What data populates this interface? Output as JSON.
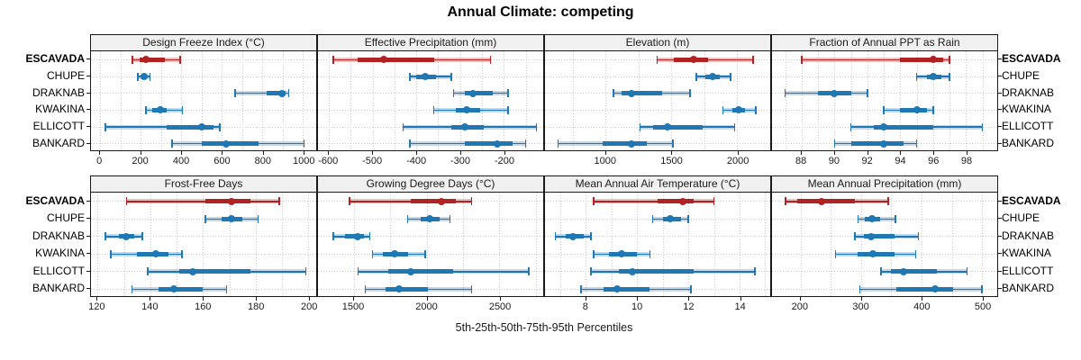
{
  "title": "Annual Climate: competing",
  "caption": "5th-25th-50th-75th-95th Percentiles",
  "highlight_site": "ESCAVADA",
  "colors": {
    "highlight": "#b22222",
    "default": "#1f77b4",
    "grid": "#c9c9c9",
    "header_bg": "#f0f0f0",
    "border": "#1a1a1a"
  },
  "chart_data": {
    "type": "scatter",
    "subtype": "percentile-interval-dotplot",
    "title": "Annual Climate: competing",
    "xlabel": "5th-25th-50th-75th-95th Percentiles",
    "percentiles": [
      5,
      25,
      50,
      75,
      95
    ],
    "legend_position": "none",
    "grid": true,
    "sites": [
      "ESCAVADA",
      "CHUPE",
      "DRAKNAB",
      "KWAKINA",
      "ELLICOTT",
      "BANKARD"
    ],
    "panels": [
      {
        "title": "Design Freeze Index (°C)",
        "row": 0,
        "xlim": [
          -45,
          1065
        ],
        "ticks": [
          0,
          200,
          400,
          600,
          800,
          1000
        ],
        "values": {
          "ESCAVADA": [
            160,
            195,
            225,
            320,
            395
          ],
          "CHUPE": [
            185,
            205,
            215,
            230,
            245
          ],
          "DRAKNAB": [
            665,
            820,
            895,
            915,
            930
          ],
          "KWAKINA": [
            225,
            255,
            295,
            330,
            405
          ],
          "ELLICOTT": [
            25,
            330,
            500,
            560,
            590
          ],
          "BANKARD": [
            355,
            500,
            620,
            780,
            1005
          ]
        }
      },
      {
        "title": "Effective Precipitation (mm)",
        "row": 0,
        "xlim": [
          -625,
          -110
        ],
        "ticks": [
          -600,
          -500,
          -400,
          -300,
          -200
        ],
        "values": {
          "ESCAVADA": [
            -590,
            -535,
            -475,
            -360,
            -230
          ],
          "CHUPE": [
            -415,
            -400,
            -380,
            -355,
            -320
          ],
          "DRAKNAB": [
            -315,
            -290,
            -270,
            -225,
            -190
          ],
          "KWAKINA": [
            -360,
            -310,
            -285,
            -255,
            -190
          ],
          "ELLICOTT": [
            -430,
            -320,
            -290,
            -245,
            -125
          ],
          "BANKARD": [
            -415,
            -290,
            -215,
            -180,
            -150
          ]
        }
      },
      {
        "title": "Elevation (m)",
        "row": 0,
        "xlim": [
          540,
          2250
        ],
        "ticks": [
          1000,
          1500,
          2000
        ],
        "values": {
          "ESCAVADA": [
            1390,
            1520,
            1670,
            1780,
            2120
          ],
          "CHUPE": [
            1690,
            1760,
            1810,
            1870,
            1950
          ],
          "DRAKNAB": [
            1060,
            1120,
            1200,
            1430,
            1640
          ],
          "KWAKINA": [
            1890,
            1960,
            2010,
            2060,
            2140
          ],
          "ELLICOTT": [
            1260,
            1360,
            1470,
            1740,
            1980
          ],
          "BANKARD": [
            640,
            980,
            1200,
            1310,
            1510
          ]
        }
      },
      {
        "title": "Fraction of Annual PPT as Rain",
        "row": 0,
        "xlim": [
          86.2,
          99.9
        ],
        "ticks": [
          88,
          90,
          92,
          94,
          96,
          98
        ],
        "values": {
          "ESCAVADA": [
            88,
            94,
            96,
            96.6,
            97
          ],
          "CHUPE": [
            95,
            95.6,
            96,
            96.5,
            97
          ],
          "DRAKNAB": [
            87,
            89,
            90,
            91,
            92
          ],
          "KWAKINA": [
            93,
            94,
            95,
            95.6,
            96
          ],
          "ELLICOTT": [
            91,
            92.4,
            93,
            96,
            99
          ],
          "BANKARD": [
            90,
            91,
            93,
            94.2,
            95
          ]
        }
      },
      {
        "title": "Frost-Free Days",
        "row": 1,
        "xlim": [
          117.5,
          203
        ],
        "ticks": [
          120,
          140,
          160,
          180,
          200
        ],
        "values": {
          "ESCAVADA": [
            131,
            161,
            171,
            178,
            189
          ],
          "CHUPE": [
            161,
            167,
            171,
            175,
            181
          ],
          "DRAKNAB": [
            123,
            128,
            131,
            134,
            137
          ],
          "KWAKINA": [
            125,
            135,
            142,
            147,
            152
          ],
          "ELLICOTT": [
            139,
            151,
            156,
            178,
            199
          ],
          "BANKARD": [
            133,
            143,
            149,
            160,
            169
          ]
        }
      },
      {
        "title": "Growing Degree Days (°C)",
        "row": 1,
        "xlim": [
          1255,
          2800
        ],
        "ticks": [
          1500,
          2000,
          2500
        ],
        "values": {
          "ESCAVADA": [
            1470,
            1890,
            2100,
            2200,
            2310
          ],
          "CHUPE": [
            1870,
            1960,
            2020,
            2090,
            2160
          ],
          "DRAKNAB": [
            1360,
            1440,
            1530,
            1570,
            1610
          ],
          "KWAKINA": [
            1630,
            1700,
            1780,
            1870,
            1990
          ],
          "ELLICOTT": [
            1530,
            1740,
            1890,
            2180,
            2700
          ],
          "BANKARD": [
            1580,
            1720,
            1810,
            2010,
            2310
          ]
        }
      },
      {
        "title": "Mean Annual Air Temperature (°C)",
        "row": 1,
        "xlim": [
          6.4,
          15.2
        ],
        "ticks": [
          8,
          10,
          12,
          14
        ],
        "values": {
          "ESCAVADA": [
            8.3,
            10.8,
            11.8,
            12.2,
            13.0
          ],
          "CHUPE": [
            10.6,
            11.0,
            11.3,
            11.7,
            12.0
          ],
          "DRAKNAB": [
            6.8,
            7.2,
            7.5,
            7.9,
            8.2
          ],
          "KWAKINA": [
            8.3,
            8.9,
            9.4,
            10.0,
            10.5
          ],
          "ELLICOTT": [
            8.2,
            9.3,
            9.8,
            12.2,
            14.6
          ],
          "BANKARD": [
            7.8,
            8.7,
            9.2,
            10.5,
            12.1
          ]
        }
      },
      {
        "title": "Mean Annual Precipitation (mm)",
        "row": 1,
        "xlim": [
          153,
          525
        ],
        "ticks": [
          200,
          300,
          400,
          500
        ],
        "values": {
          "ESCAVADA": [
            175,
            195,
            235,
            290,
            345
          ],
          "CHUPE": [
            295,
            307,
            318,
            332,
            357
          ],
          "DRAKNAB": [
            290,
            305,
            317,
            355,
            395
          ],
          "KWAKINA": [
            258,
            295,
            320,
            355,
            390
          ],
          "ELLICOTT": [
            333,
            350,
            370,
            425,
            475
          ],
          "BANKARD": [
            298,
            358,
            422,
            452,
            500
          ]
        }
      }
    ]
  }
}
